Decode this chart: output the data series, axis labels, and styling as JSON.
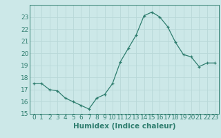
{
  "x": [
    0,
    1,
    2,
    3,
    4,
    5,
    6,
    7,
    8,
    9,
    10,
    11,
    12,
    13,
    14,
    15,
    16,
    17,
    18,
    19,
    20,
    21,
    22,
    23
  ],
  "y": [
    17.5,
    17.5,
    17.0,
    16.9,
    16.3,
    16.0,
    15.7,
    15.4,
    16.3,
    16.6,
    17.5,
    19.3,
    20.4,
    21.5,
    23.1,
    23.4,
    23.0,
    22.2,
    20.9,
    19.9,
    19.7,
    18.9,
    19.2,
    19.2
  ],
  "line_color": "#2e7d6e",
  "marker": "+",
  "marker_size": 3,
  "bg_color": "#cce8e8",
  "grid_color": "#b8d8d8",
  "xlabel": "Humidex (Indice chaleur)",
  "ylim": [
    15,
    24
  ],
  "xlim": [
    -0.5,
    23.5
  ],
  "yticks": [
    15,
    16,
    17,
    18,
    19,
    20,
    21,
    22,
    23
  ],
  "xticks": [
    0,
    1,
    2,
    3,
    4,
    5,
    6,
    7,
    8,
    9,
    10,
    11,
    12,
    13,
    14,
    15,
    16,
    17,
    18,
    19,
    20,
    21,
    22,
    23
  ],
  "tick_label_size": 6.5,
  "xlabel_size": 7.5
}
